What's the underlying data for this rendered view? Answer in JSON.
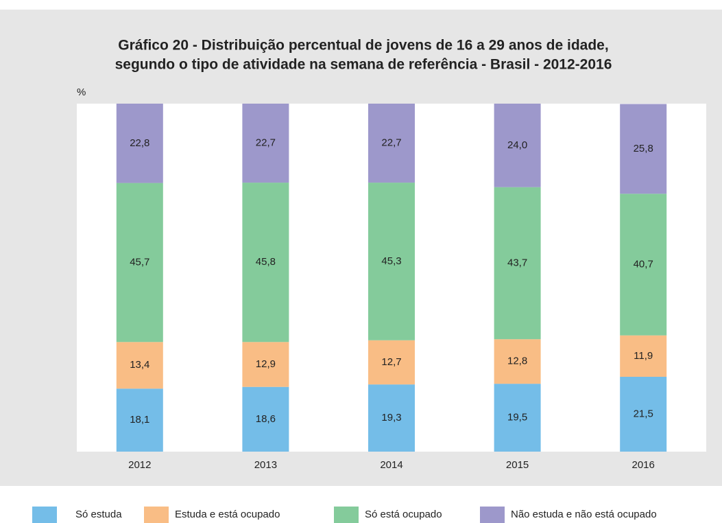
{
  "chart_data": {
    "type": "stacked_bar",
    "title": [
      "Gráfico 20 - Distribuição percentual de jovens de 16 a 29 anos de idade,",
      "segundo o tipo de atividade na semana de referência - Brasil - 2012-2016"
    ],
    "y_label": "%",
    "categories": [
      "2012",
      "2013",
      "2014",
      "2015",
      "2016"
    ],
    "ylim": [
      0,
      100
    ],
    "legend": "bottom",
    "series": [
      {
        "name": "Só estuda",
        "color": "#74bde8",
        "values": [
          18.1,
          18.6,
          19.3,
          19.5,
          21.5
        ],
        "value_labels": [
          "18,1",
          "18,6",
          "19,3",
          "19,5",
          "21,5"
        ]
      },
      {
        "name": "Estuda e está ocupado",
        "color": "#f9bd85",
        "values": [
          13.4,
          12.9,
          12.7,
          12.8,
          11.9
        ],
        "value_labels": [
          "13,4",
          "12,9",
          "12,7",
          "12,8",
          "11,9"
        ]
      },
      {
        "name": "Só está ocupado",
        "color": "#84cb9b",
        "values": [
          45.7,
          45.8,
          45.3,
          43.7,
          40.7
        ],
        "value_labels": [
          "45,7",
          "45,8",
          "45,3",
          "43,7",
          "40,7"
        ]
      },
      {
        "name": "Não estuda e não está ocupado",
        "color": "#9d98cb",
        "values": [
          22.8,
          22.7,
          22.7,
          24.0,
          25.8
        ],
        "value_labels": [
          "22,8",
          "22,7",
          "22,7",
          "24,0",
          "25,8"
        ]
      }
    ]
  }
}
